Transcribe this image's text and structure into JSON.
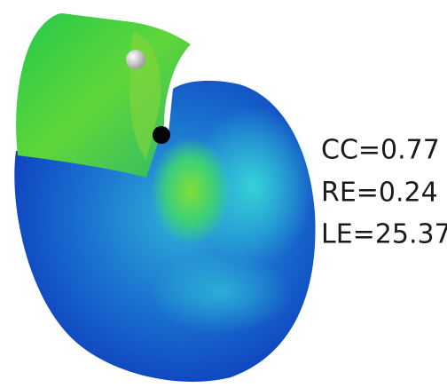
{
  "labels": [
    "CC=0.77",
    "RE=0.24",
    "LE=25.37"
  ]
}
